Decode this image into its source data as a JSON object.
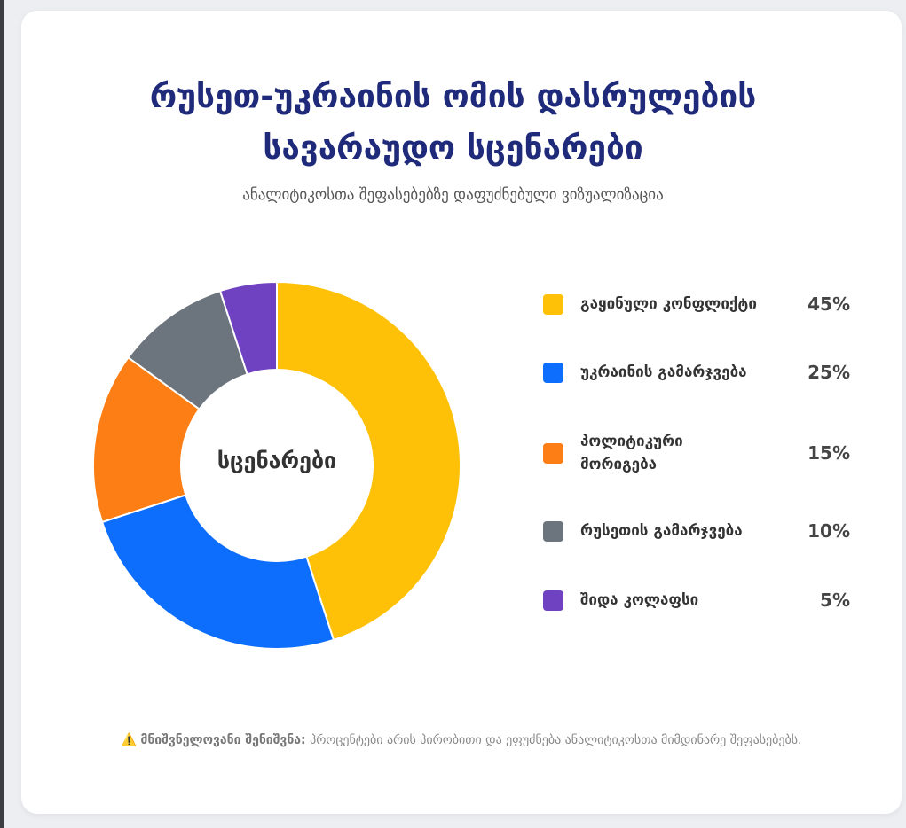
{
  "header": {
    "title_line1": "რუსეთ-უკრაინის ომის დასრულების",
    "title_line2": "სავარაუდო სცენარები",
    "subtitle": "ანალიტიკოსთა შეფასებებზე დაფუძნებული ვიზუალიზაცია"
  },
  "chart_data": {
    "type": "pie",
    "variant": "doughnut",
    "center_label": "სცენარები",
    "categories": [
      "გაყინული კონფლიქტი",
      "უკრაინის გამარჯვება",
      "პოლიტიკური მორიგება",
      "რუსეთის გამარჯვება",
      "შიდა კოლაფსი"
    ],
    "values": [
      45,
      25,
      15,
      10,
      5
    ],
    "value_labels": [
      "45%",
      "25%",
      "15%",
      "10%",
      "5%"
    ],
    "colors": [
      "#ffc107",
      "#0d6efd",
      "#fd7e14",
      "#6c757d",
      "#6f42c1"
    ],
    "legend": "right"
  },
  "note": {
    "icon": "warning-icon",
    "icon_glyph": "⚠️",
    "label": "მნიშვნელოვანი შენიშვნა:",
    "text": " პროცენტები არის პირობითი და ეფუძნება ანალიტიკოსთა მიმდინარე შეფასებებს."
  }
}
